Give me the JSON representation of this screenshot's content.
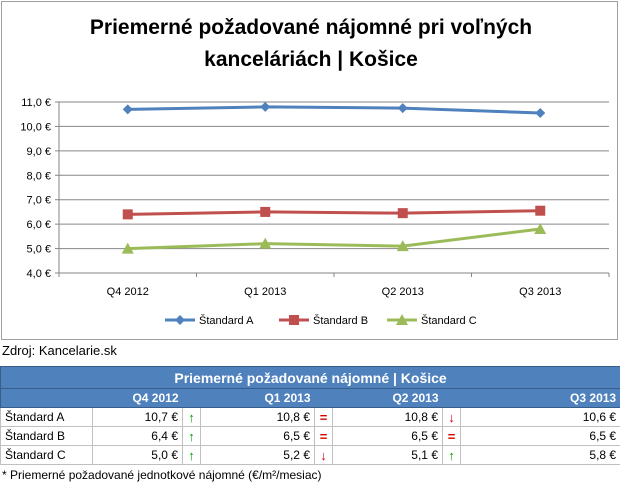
{
  "chart_data": {
    "type": "line",
    "title_line1": "Priemerné požadované nájomné pri voľných",
    "title_line2": "kanceláriách | Košice",
    "categories": [
      "Q4 2012",
      "Q1 2013",
      "Q2 2013",
      "Q3 2013"
    ],
    "ylim": [
      4.0,
      11.0
    ],
    "yticks": [
      "4,0 €",
      "5,0 €",
      "6,0 €",
      "7,0 €",
      "8,0 €",
      "9,0 €",
      "10,0 €",
      "11,0 €"
    ],
    "ytick_values": [
      4,
      5,
      6,
      7,
      8,
      9,
      10,
      11
    ],
    "grid": true,
    "legend_position": "bottom",
    "series": [
      {
        "name": "Štandard A",
        "values": [
          10.7,
          10.8,
          10.75,
          10.55
        ],
        "color": "#4f81bd",
        "marker": "diamond"
      },
      {
        "name": "Štandard B",
        "values": [
          6.4,
          6.5,
          6.45,
          6.55
        ],
        "color": "#c0504d",
        "marker": "square"
      },
      {
        "name": "Štandard C",
        "values": [
          5.0,
          5.2,
          5.1,
          5.8
        ],
        "color": "#9bbb59",
        "marker": "triangle"
      }
    ]
  },
  "source": "Zdroj: Kancelarie.sk",
  "table": {
    "title": "Priemerné požadované nájomné | Košice",
    "headers": [
      "Q4 2012",
      "Q1 2013",
      "Q2 2013",
      "Q3 2013"
    ],
    "rows": [
      {
        "label": "Štandard A",
        "cells": [
          "10,7 €",
          "10,8 €",
          "10,8 €",
          "10,6 €"
        ],
        "arrows": [
          "↑",
          "=",
          "↓"
        ],
        "arrow_types": [
          "up",
          "eq",
          "down"
        ]
      },
      {
        "label": "Štandard B",
        "cells": [
          "6,4 €",
          "6,5 €",
          "6,5 €",
          "6,5 €"
        ],
        "arrows": [
          "↑",
          "=",
          "="
        ],
        "arrow_types": [
          "up",
          "eq",
          "eq"
        ]
      },
      {
        "label": "Štandard C",
        "cells": [
          "5,0 €",
          "5,2 €",
          "5,1 €",
          "5,8 €"
        ],
        "arrows": [
          "↑",
          "↓",
          "↑"
        ],
        "arrow_types": [
          "up",
          "down",
          "up"
        ]
      }
    ]
  },
  "footnote": "* Priemerné požadované jednotkové nájomné (€/m²/mesiac)"
}
